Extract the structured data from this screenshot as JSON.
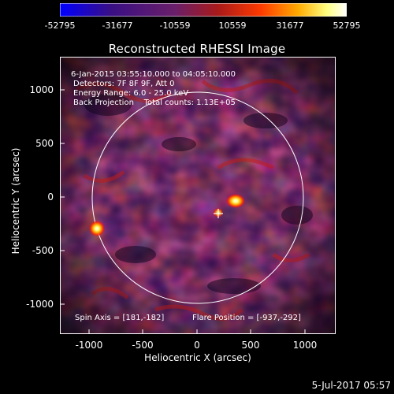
{
  "colorbar": {
    "ticks": [
      "-52795",
      "-31677",
      "-10559",
      "10559",
      "31677",
      "52795"
    ],
    "colors": [
      "#0000ff",
      "#3a0f84",
      "#6a1f6a",
      "#a81a1a",
      "#ff3a00",
      "#ffaa00",
      "#ffff80",
      "#ffffff"
    ]
  },
  "image": {
    "title": "Reconstructed RHESSI Image",
    "annotations": [
      "6-Jan-2015 03:55:10.000 to 04:05:10.000",
      "Detectors: 7F 8F 9F, Att 0",
      "Energy Range: 6.0 - 25.0 keV",
      "Back Projection    Total counts: 1.13E+05"
    ],
    "spin_axis": "Spin Axis = [181,-182]",
    "flare_position": "Flare Position = [-937,-292]"
  },
  "axes": {
    "xlabel": "Heliocentric X (arcsec)",
    "ylabel": "Heliocentric Y (arcsec)",
    "xticks": [
      "-1000",
      "-500",
      "0",
      "500",
      "1000"
    ],
    "yticks": [
      "1000",
      "500",
      "0",
      "-500",
      "-1000"
    ]
  },
  "footer": {
    "date": "5-Jul-2017 05:57"
  }
}
